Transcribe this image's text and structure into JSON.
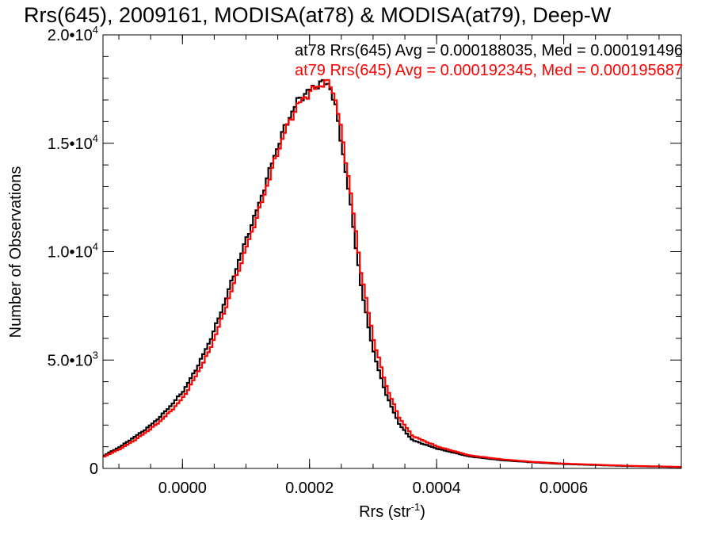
{
  "chart_data": {
    "type": "line",
    "title": "Rrs(645), 2009161, MODISA(at78) & MODISA(at79), Deep-W",
    "xlabel": "Rrs (str",
    "xlabel_sup": "-1",
    "xlabel_end": ")",
    "ylabel": "Number of Observations",
    "xlim": [
      -0.000125,
      0.000785
    ],
    "ylim": [
      0,
      20000
    ],
    "x_ticks": [
      {
        "value": 0.0,
        "label": "0.0000"
      },
      {
        "value": 0.0002,
        "label": "0.0002"
      },
      {
        "value": 0.0004,
        "label": "0.0004"
      },
      {
        "value": 0.0006,
        "label": "0.0006"
      }
    ],
    "y_ticks": [
      {
        "value": 0,
        "label": "0",
        "sup": ""
      },
      {
        "value": 5000,
        "label": "5.0•10",
        "sup": "3"
      },
      {
        "value": 10000,
        "label": "1.0•10",
        "sup": "4"
      },
      {
        "value": 15000,
        "label": "1.5•10",
        "sup": "4"
      },
      {
        "value": 20000,
        "label": "2.0•10",
        "sup": "4"
      }
    ],
    "annotations": [
      {
        "text": "at78 Rrs(645) Avg = 0.000188035, Med = 0.000191496",
        "color": "#000000"
      },
      {
        "text": "at79 Rrs(645) Avg = 0.000192345, Med = 0.000195687",
        "color": "#ff0000"
      }
    ],
    "grid": false,
    "series": [
      {
        "color": "#000000",
        "x": [
          -0.000125,
          -0.0001,
          -8e-05,
          -6e-05,
          -4e-05,
          -2e-05,
          0.0,
          2e-05,
          4e-05,
          6e-05,
          8e-05,
          0.0001,
          0.00012,
          0.00014,
          0.00016,
          0.00018,
          0.0002,
          0.00021,
          0.00022,
          0.00023,
          0.00024,
          0.00025,
          0.00026,
          0.00027,
          0.00028,
          0.0003,
          0.00032,
          0.00034,
          0.00036,
          0.0004,
          0.00045,
          0.0005,
          0.00055,
          0.0006,
          0.0007,
          0.000785
        ],
        "y": [
          600,
          1000,
          1400,
          1800,
          2300,
          2900,
          3600,
          4600,
          5800,
          7300,
          9000,
          10700,
          12300,
          14200,
          15800,
          17000,
          17500,
          17700,
          17800,
          17700,
          16500,
          14700,
          12700,
          10500,
          8200,
          5200,
          3300,
          2000,
          1300,
          900,
          550,
          380,
          280,
          200,
          110,
          60
        ]
      },
      {
        "color": "#ff0000",
        "x": [
          -0.000125,
          -0.0001,
          -8e-05,
          -6e-05,
          -4e-05,
          -2e-05,
          0.0,
          2e-05,
          4e-05,
          6e-05,
          8e-05,
          0.0001,
          0.00012,
          0.00014,
          0.00016,
          0.00018,
          0.0002,
          0.00021,
          0.00022,
          0.00023,
          0.00024,
          0.00025,
          0.00026,
          0.00027,
          0.00028,
          0.0003,
          0.00032,
          0.00034,
          0.00036,
          0.0004,
          0.00045,
          0.0005,
          0.00055,
          0.0006,
          0.0007,
          0.000785
        ],
        "y": [
          550,
          900,
          1250,
          1650,
          2100,
          2650,
          3300,
          4300,
          5400,
          6900,
          8600,
          10300,
          12000,
          13900,
          15600,
          16800,
          17400,
          17600,
          17750,
          17800,
          16900,
          15200,
          13300,
          11100,
          8900,
          5800,
          3700,
          2300,
          1500,
          1000,
          600,
          420,
          300,
          220,
          120,
          70
        ]
      }
    ]
  }
}
